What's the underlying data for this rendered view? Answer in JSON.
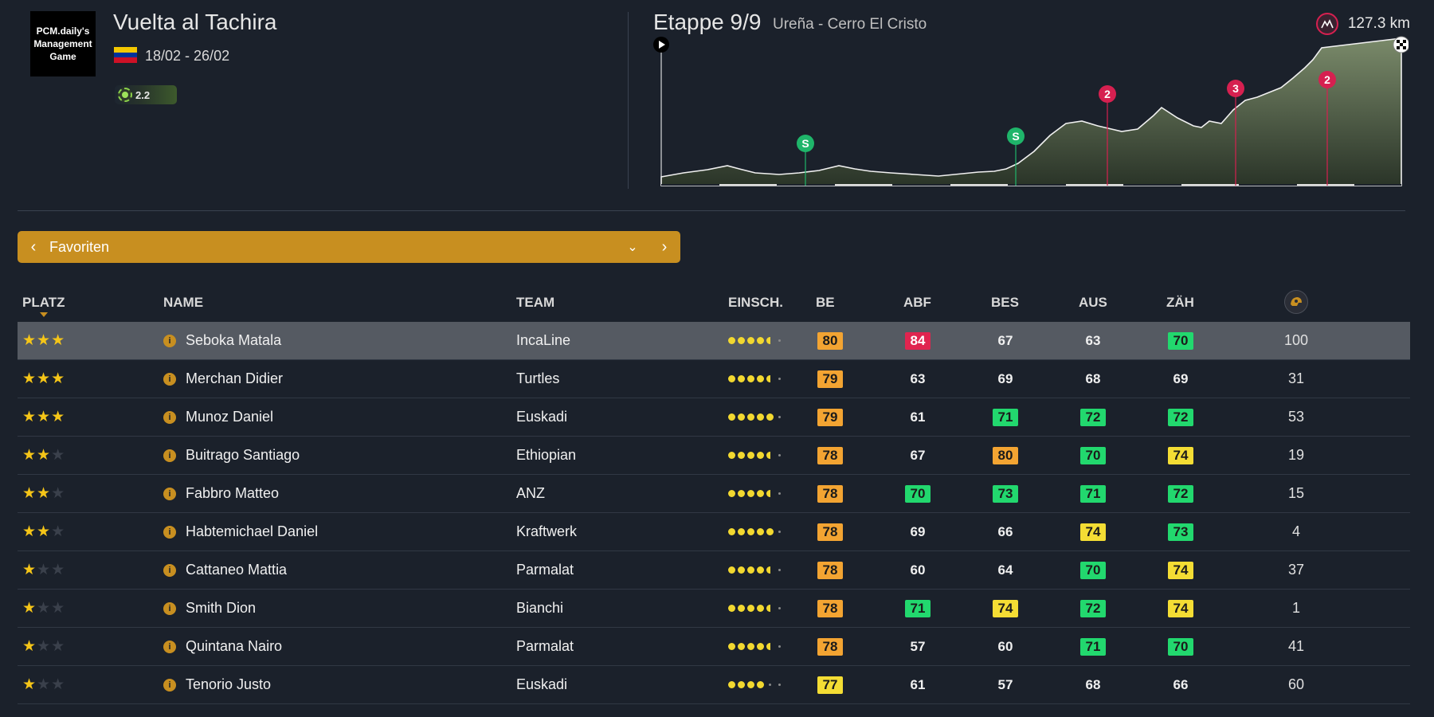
{
  "race": {
    "logo_text": "PCM.daily's Management Game",
    "title": "Vuelta al Tachira",
    "dates": "18/02 - 26/02",
    "class": "2.2",
    "flag_colors": [
      "#f4c800",
      "#00339a",
      "#ce1126"
    ]
  },
  "stage": {
    "title": "Etappe 9/9",
    "route": "Ureña - Cerro El Cristo",
    "distance": "127.3 km",
    "markers": [
      {
        "type": "sprint",
        "label": "S",
        "color": "#1fb56a"
      },
      {
        "type": "sprint",
        "label": "S",
        "color": "#1fb56a"
      },
      {
        "type": "climb",
        "label": "2",
        "color": "#d62050"
      },
      {
        "type": "climb",
        "label": "3",
        "color": "#d62050"
      },
      {
        "type": "climb",
        "label": "2",
        "color": "#d62050"
      }
    ]
  },
  "selector": {
    "label": "Favoriten",
    "prev_icon": "chevron-left-icon",
    "next_icon": "chevron-right-icon",
    "dropdown_icon": "chevron-down-icon"
  },
  "table": {
    "headers": {
      "place": "PLATZ",
      "name": "NAME",
      "team": "TEAM",
      "form": "EINSCH.",
      "be": "BE",
      "abf": "ABF",
      "bes": "BES",
      "aus": "AUS",
      "zah": "ZÄH"
    },
    "rows": [
      {
        "stars": 3,
        "name": "Seboka Matala",
        "team": "IncaLine",
        "form": 4.5,
        "be": {
          "v": "80",
          "c": "orange"
        },
        "abf": {
          "v": "84",
          "c": "red"
        },
        "bes": {
          "v": "67",
          "c": ""
        },
        "aus": {
          "v": "63",
          "c": ""
        },
        "zah": {
          "v": "70",
          "c": "green"
        },
        "pts": "100",
        "selected": true
      },
      {
        "stars": 3,
        "name": "Merchan Didier",
        "team": "Turtles",
        "form": 4.5,
        "be": {
          "v": "79",
          "c": "orange"
        },
        "abf": {
          "v": "63",
          "c": ""
        },
        "bes": {
          "v": "69",
          "c": ""
        },
        "aus": {
          "v": "68",
          "c": ""
        },
        "zah": {
          "v": "69",
          "c": ""
        },
        "pts": "31"
      },
      {
        "stars": 3,
        "name": "Munoz Daniel",
        "team": "Euskadi",
        "form": 5,
        "be": {
          "v": "79",
          "c": "orange"
        },
        "abf": {
          "v": "61",
          "c": ""
        },
        "bes": {
          "v": "71",
          "c": "green"
        },
        "aus": {
          "v": "72",
          "c": "green"
        },
        "zah": {
          "v": "72",
          "c": "green"
        },
        "pts": "53"
      },
      {
        "stars": 2,
        "name": "Buitrago Santiago",
        "team": "Ethiopian",
        "form": 4.5,
        "be": {
          "v": "78",
          "c": "orange"
        },
        "abf": {
          "v": "67",
          "c": ""
        },
        "bes": {
          "v": "80",
          "c": "orange"
        },
        "aus": {
          "v": "70",
          "c": "green"
        },
        "zah": {
          "v": "74",
          "c": "yellow"
        },
        "pts": "19"
      },
      {
        "stars": 2,
        "name": "Fabbro Matteo",
        "team": "ANZ",
        "form": 4.5,
        "be": {
          "v": "78",
          "c": "orange"
        },
        "abf": {
          "v": "70",
          "c": "green"
        },
        "bes": {
          "v": "73",
          "c": "green"
        },
        "aus": {
          "v": "71",
          "c": "green"
        },
        "zah": {
          "v": "72",
          "c": "green"
        },
        "pts": "15"
      },
      {
        "stars": 2,
        "name": "Habtemichael Daniel",
        "team": "Kraftwerk",
        "form": 5,
        "be": {
          "v": "78",
          "c": "orange"
        },
        "abf": {
          "v": "69",
          "c": ""
        },
        "bes": {
          "v": "66",
          "c": ""
        },
        "aus": {
          "v": "74",
          "c": "yellow"
        },
        "zah": {
          "v": "73",
          "c": "green"
        },
        "pts": "4"
      },
      {
        "stars": 1,
        "name": "Cattaneo Mattia",
        "team": "Parmalat",
        "form": 4.5,
        "be": {
          "v": "78",
          "c": "orange"
        },
        "abf": {
          "v": "60",
          "c": ""
        },
        "bes": {
          "v": "64",
          "c": ""
        },
        "aus": {
          "v": "70",
          "c": "green"
        },
        "zah": {
          "v": "74",
          "c": "yellow"
        },
        "pts": "37"
      },
      {
        "stars": 1,
        "name": "Smith Dion",
        "team": "Bianchi",
        "form": 4.5,
        "be": {
          "v": "78",
          "c": "orange"
        },
        "abf": {
          "v": "71",
          "c": "green"
        },
        "bes": {
          "v": "74",
          "c": "yellow"
        },
        "aus": {
          "v": "72",
          "c": "green"
        },
        "zah": {
          "v": "74",
          "c": "yellow"
        },
        "pts": "1"
      },
      {
        "stars": 1,
        "name": "Quintana Nairo",
        "team": "Parmalat",
        "form": 4.5,
        "be": {
          "v": "78",
          "c": "orange"
        },
        "abf": {
          "v": "57",
          "c": ""
        },
        "bes": {
          "v": "60",
          "c": ""
        },
        "aus": {
          "v": "71",
          "c": "green"
        },
        "zah": {
          "v": "70",
          "c": "green"
        },
        "pts": "41"
      },
      {
        "stars": 1,
        "name": "Tenorio Justo",
        "team": "Euskadi",
        "form": 4,
        "be": {
          "v": "77",
          "c": "yellow"
        },
        "abf": {
          "v": "61",
          "c": ""
        },
        "bes": {
          "v": "57",
          "c": ""
        },
        "aus": {
          "v": "68",
          "c": ""
        },
        "zah": {
          "v": "66",
          "c": ""
        },
        "pts": "60"
      }
    ]
  }
}
